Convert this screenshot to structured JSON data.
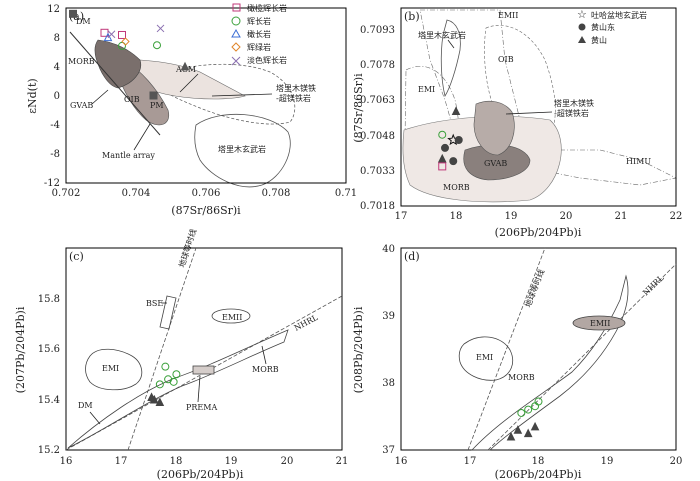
{
  "chart_data": [
    {
      "panel": "a",
      "type": "scatter",
      "panel_label": "(a)",
      "xlabel": "(87Sr/86Sr)i",
      "ylabel": "εNd(t)",
      "xlim": [
        0.702,
        0.71
      ],
      "ylim": [
        -12,
        12
      ],
      "x_ticks": [
        "0.702",
        "0.704",
        "0.706",
        "0.708",
        "0.71"
      ],
      "y_ticks": [
        "12",
        "8",
        "4",
        "0",
        "-4",
        "-8",
        "-12"
      ],
      "legend": [
        "橄榄辉长岩",
        "辉长岩",
        "橄长岩",
        "辉绿岩",
        "淡色辉长岩"
      ],
      "labels": {
        "DM": "DM",
        "MORB": "MORB",
        "GVAB": "GVAB",
        "OIB": "OIB",
        "PM": "PM",
        "ACM": "ACM",
        "mantle": "Mantle array",
        "tarim_basalt": "塔里木玄武岩",
        "tarim_ultra_1": "塔里木镁铁",
        "tarim_ultra_2": "-超镁铁岩"
      },
      "series": [
        {
          "name": "橄榄辉长岩",
          "x": [
            0.7031,
            0.7036
          ],
          "y": [
            8.6,
            8.3
          ]
        },
        {
          "name": "辉长岩",
          "x": [
            0.7036,
            0.7046
          ],
          "y": [
            6.8,
            6.9
          ]
        },
        {
          "name": "橄长岩",
          "x": [
            0.7032
          ],
          "y": [
            8.0
          ]
        },
        {
          "name": "辉绿岩",
          "x": [
            0.7037
          ],
          "y": [
            7.4
          ]
        },
        {
          "name": "淡色辉长岩",
          "x": [
            0.7033,
            0.7047
          ],
          "y": [
            8.4,
            9.2
          ]
        },
        {
          "name": "DM",
          "x": [
            0.7022
          ],
          "y": [
            11.2
          ]
        },
        {
          "name": "ACM",
          "x": [
            0.7054
          ],
          "y": [
            4.0
          ]
        },
        {
          "name": "PM",
          "x": [
            0.7045
          ],
          "y": [
            0.0
          ]
        }
      ]
    },
    {
      "panel": "b",
      "type": "scatter",
      "panel_label": "(b)",
      "xlabel": "(206Pb/204Pb)i",
      "ylabel": "(87Sr/86Sr)i",
      "xlim": [
        17,
        22
      ],
      "ylim": [
        0.7018,
        0.7093
      ],
      "x_ticks": [
        "17",
        "18",
        "19",
        "20",
        "21",
        "22"
      ],
      "y_ticks": [
        "0.7093",
        "0.7078",
        "0.7063",
        "0.7048",
        "0.7033",
        "0.7018"
      ],
      "legend": [
        "吐哈盆地玄武岩",
        "黄山东",
        "黄山"
      ],
      "labels": {
        "EMII": "EMII",
        "EMI": "EMI",
        "OIB": "OIB",
        "GVAB": "GVAB",
        "MORB": "MORB",
        "HIMU": "HIMU",
        "tarim_basalt": "塔里木玄武岩",
        "tarim_ultra_1": "塔里木镁铁",
        "tarim_ultra_2": "-超镁铁岩"
      },
      "series": [
        {
          "name": "吐哈盆地玄武岩",
          "x": [
            17.95
          ],
          "y": [
            0.7043
          ]
        },
        {
          "name": "黄山东",
          "x": [
            17.8,
            17.95,
            18.05
          ],
          "y": [
            0.704,
            0.7035,
            0.7043
          ]
        },
        {
          "name": "黄山",
          "x": [
            18.0,
            17.75
          ],
          "y": [
            0.7054,
            0.7036
          ]
        },
        {
          "name": "辉长岩",
          "x": [
            17.75
          ],
          "y": [
            0.7045
          ]
        },
        {
          "name": "橄榄辉长岩",
          "x": [
            17.75
          ],
          "y": [
            0.7033
          ]
        }
      ]
    },
    {
      "panel": "c",
      "type": "scatter",
      "panel_label": "(c)",
      "xlabel": "(206Pb/204Pb)i",
      "ylabel": "(207Pb/204Pb)i",
      "xlim": [
        16,
        21
      ],
      "ylim": [
        15.2,
        16.0
      ],
      "x_ticks": [
        "16",
        "17",
        "18",
        "19",
        "20",
        "21"
      ],
      "y_ticks": [
        "15.8",
        "15.6",
        "15.4",
        "15.2"
      ],
      "labels": {
        "geochron": "地球等时线",
        "BSE": "BSE",
        "EMII": "EMII",
        "EMI": "EMI",
        "NHRL": "NHRL",
        "MORB": "MORB",
        "PREMA": "PREMA",
        "DM": "DM"
      },
      "series": [
        {
          "name": "samples",
          "x": [
            17.7,
            17.85,
            17.95,
            18.0,
            17.8
          ],
          "y": [
            15.46,
            15.48,
            15.47,
            15.5,
            15.53
          ]
        },
        {
          "name": "黄山",
          "x": [
            17.55,
            17.6,
            17.7
          ],
          "y": [
            15.41,
            15.4,
            15.39
          ]
        }
      ]
    },
    {
      "panel": "d",
      "type": "scatter",
      "panel_label": "(d)",
      "xlabel": "(206Pb/204Pb)i",
      "ylabel": "(208Pb/204Pb)i",
      "xlim": [
        16,
        20
      ],
      "ylim": [
        37,
        40
      ],
      "x_ticks": [
        "16",
        "17",
        "18",
        "19",
        "20"
      ],
      "y_ticks": [
        "40",
        "39",
        "38",
        "37"
      ],
      "labels": {
        "geochron": "地球等时线",
        "NHRL": "NHRL",
        "EMII": "EMII",
        "EMI": "EMI",
        "MORB": "MORB"
      },
      "series": [
        {
          "name": "samples",
          "x": [
            17.75,
            17.85,
            17.95,
            18.0
          ],
          "y": [
            37.55,
            37.6,
            37.65,
            37.72
          ]
        },
        {
          "name": "黄山",
          "x": [
            17.6,
            17.7,
            17.85,
            17.95
          ],
          "y": [
            37.2,
            37.3,
            37.25,
            37.35
          ]
        }
      ]
    }
  ]
}
